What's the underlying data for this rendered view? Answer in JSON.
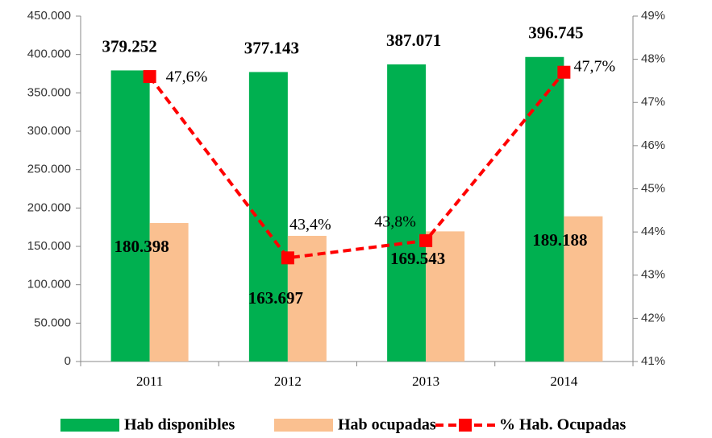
{
  "chart_data": {
    "type": "bar",
    "categories": [
      "2011",
      "2012",
      "2013",
      "2014"
    ],
    "series": [
      {
        "name": "Hab disponibles",
        "color": "#00b050",
        "values": [
          379252,
          377143,
          387071,
          396745
        ],
        "value_labels": [
          "379.252",
          "377.143",
          "387.071",
          "396.745"
        ]
      },
      {
        "name": "Hab ocupadas",
        "color": "#fac090",
        "values": [
          180398,
          163697,
          169543,
          189188
        ],
        "value_labels": [
          "180.398",
          "163.697",
          "169.543",
          "189.188"
        ]
      },
      {
        "name": "% Hab. Ocupadas",
        "type": "line",
        "axis": "y2",
        "color": "#ff0000",
        "values": [
          47.6,
          43.4,
          43.8,
          47.7
        ],
        "value_labels": [
          "47,6%",
          "43,4%",
          "43,8%",
          "47,7%"
        ]
      }
    ],
    "ylim": [
      0,
      450000
    ],
    "yticks": [
      0,
      {
        "value": 50000,
        "label": "50.000"
      },
      {
        "value": 100000,
        "label": "100.000"
      },
      {
        "value": 150000,
        "label": "150.000"
      },
      {
        "value": 200000,
        "label": "200.000"
      },
      {
        "value": 250000,
        "label": "250.000"
      },
      {
        "value": 300000,
        "label": "300.000"
      },
      {
        "value": 350000,
        "label": "350.000"
      },
      {
        "value": 400000,
        "label": "400.000"
      },
      {
        "value": 450000,
        "label": "450.000"
      }
    ],
    "y2lim": [
      41,
      49
    ],
    "y2ticks": [
      {
        "value": 41,
        "label": "41%"
      },
      {
        "value": 42,
        "label": "42%"
      },
      {
        "value": 43,
        "label": "43%"
      },
      {
        "value": 44,
        "label": "44%"
      },
      {
        "value": 45,
        "label": "45%"
      },
      {
        "value": 46,
        "label": "46%"
      },
      {
        "value": 47,
        "label": "47%"
      },
      {
        "value": 48,
        "label": "48%"
      },
      {
        "value": 49,
        "label": "49%"
      }
    ],
    "grid": false,
    "legend": "bottom"
  }
}
